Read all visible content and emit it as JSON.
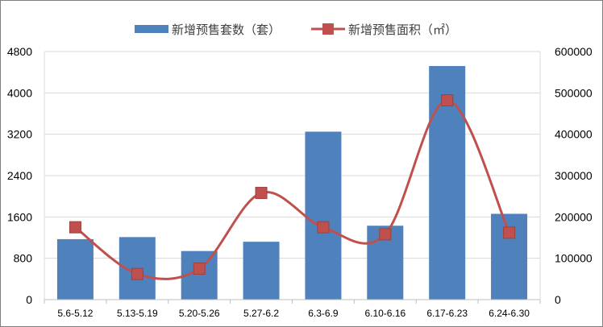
{
  "chart_data": {
    "type": "bar",
    "categories": [
      "5.6-5.12",
      "5.13-5.19",
      "5.20-5.26",
      "5.27-6.2",
      "6.3-6.9",
      "6.10-6.16",
      "6.17-6.23",
      "6.24-6.30"
    ],
    "series": [
      {
        "name": "新增预售套数（套）",
        "type": "bar",
        "axis": "left",
        "color": "#4f81bd",
        "values": [
          1170,
          1210,
          940,
          1120,
          3250,
          1430,
          4520,
          1660
        ]
      },
      {
        "name": "新增预售面积（㎡）",
        "type": "line",
        "axis": "right",
        "color": "#c0504d",
        "marker": "square",
        "smooth": true,
        "values": [
          175000,
          62000,
          75000,
          258000,
          175000,
          158000,
          482000,
          162000
        ]
      }
    ],
    "y_left": {
      "ylim": [
        0,
        4800
      ],
      "ticks": [
        0,
        800,
        1600,
        2400,
        3200,
        4000,
        4800
      ]
    },
    "y_right": {
      "ylim": [
        0,
        600000
      ],
      "ticks": [
        0,
        100000,
        200000,
        300000,
        400000,
        500000,
        600000
      ]
    },
    "grid": true,
    "legend": "top-center",
    "title": "",
    "xlabel": "",
    "ylabel": ""
  }
}
